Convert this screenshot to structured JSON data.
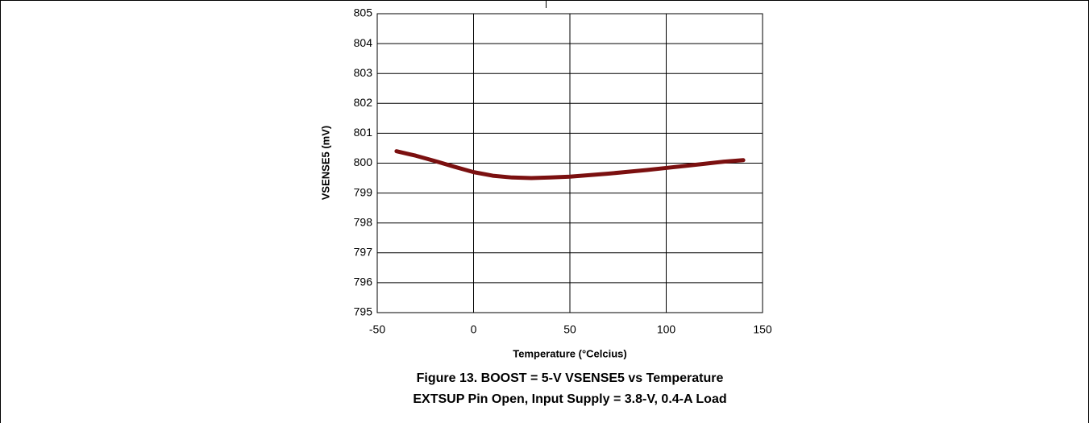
{
  "chart_data": {
    "type": "line",
    "title": "Figure 13. BOOST = 5-V VSENSE5 vs Temperature",
    "subtitle": "EXTSUP Pin Open, Input Supply = 3.8-V, 0.4-A Load",
    "x_label": "Temperature (°Celcius)",
    "y_label": "VSENSE5 (mV)",
    "x": [
      -40,
      -30,
      -20,
      -10,
      0,
      10,
      20,
      30,
      40,
      50,
      60,
      70,
      80,
      90,
      100,
      110,
      120,
      130,
      140
    ],
    "values": [
      800.4,
      800.25,
      800.07,
      799.88,
      799.7,
      799.58,
      799.52,
      799.5,
      799.52,
      799.55,
      799.6,
      799.65,
      799.71,
      799.77,
      799.84,
      799.91,
      799.98,
      800.05,
      800.1
    ],
    "color": "#7b1010",
    "xlim": [
      -50,
      150
    ],
    "xticks": [
      -50,
      0,
      50,
      100,
      150
    ],
    "ylim": [
      795,
      805
    ],
    "yticks": [
      795,
      796,
      797,
      798,
      799,
      800,
      801,
      802,
      803,
      804,
      805
    ],
    "grid": true
  }
}
